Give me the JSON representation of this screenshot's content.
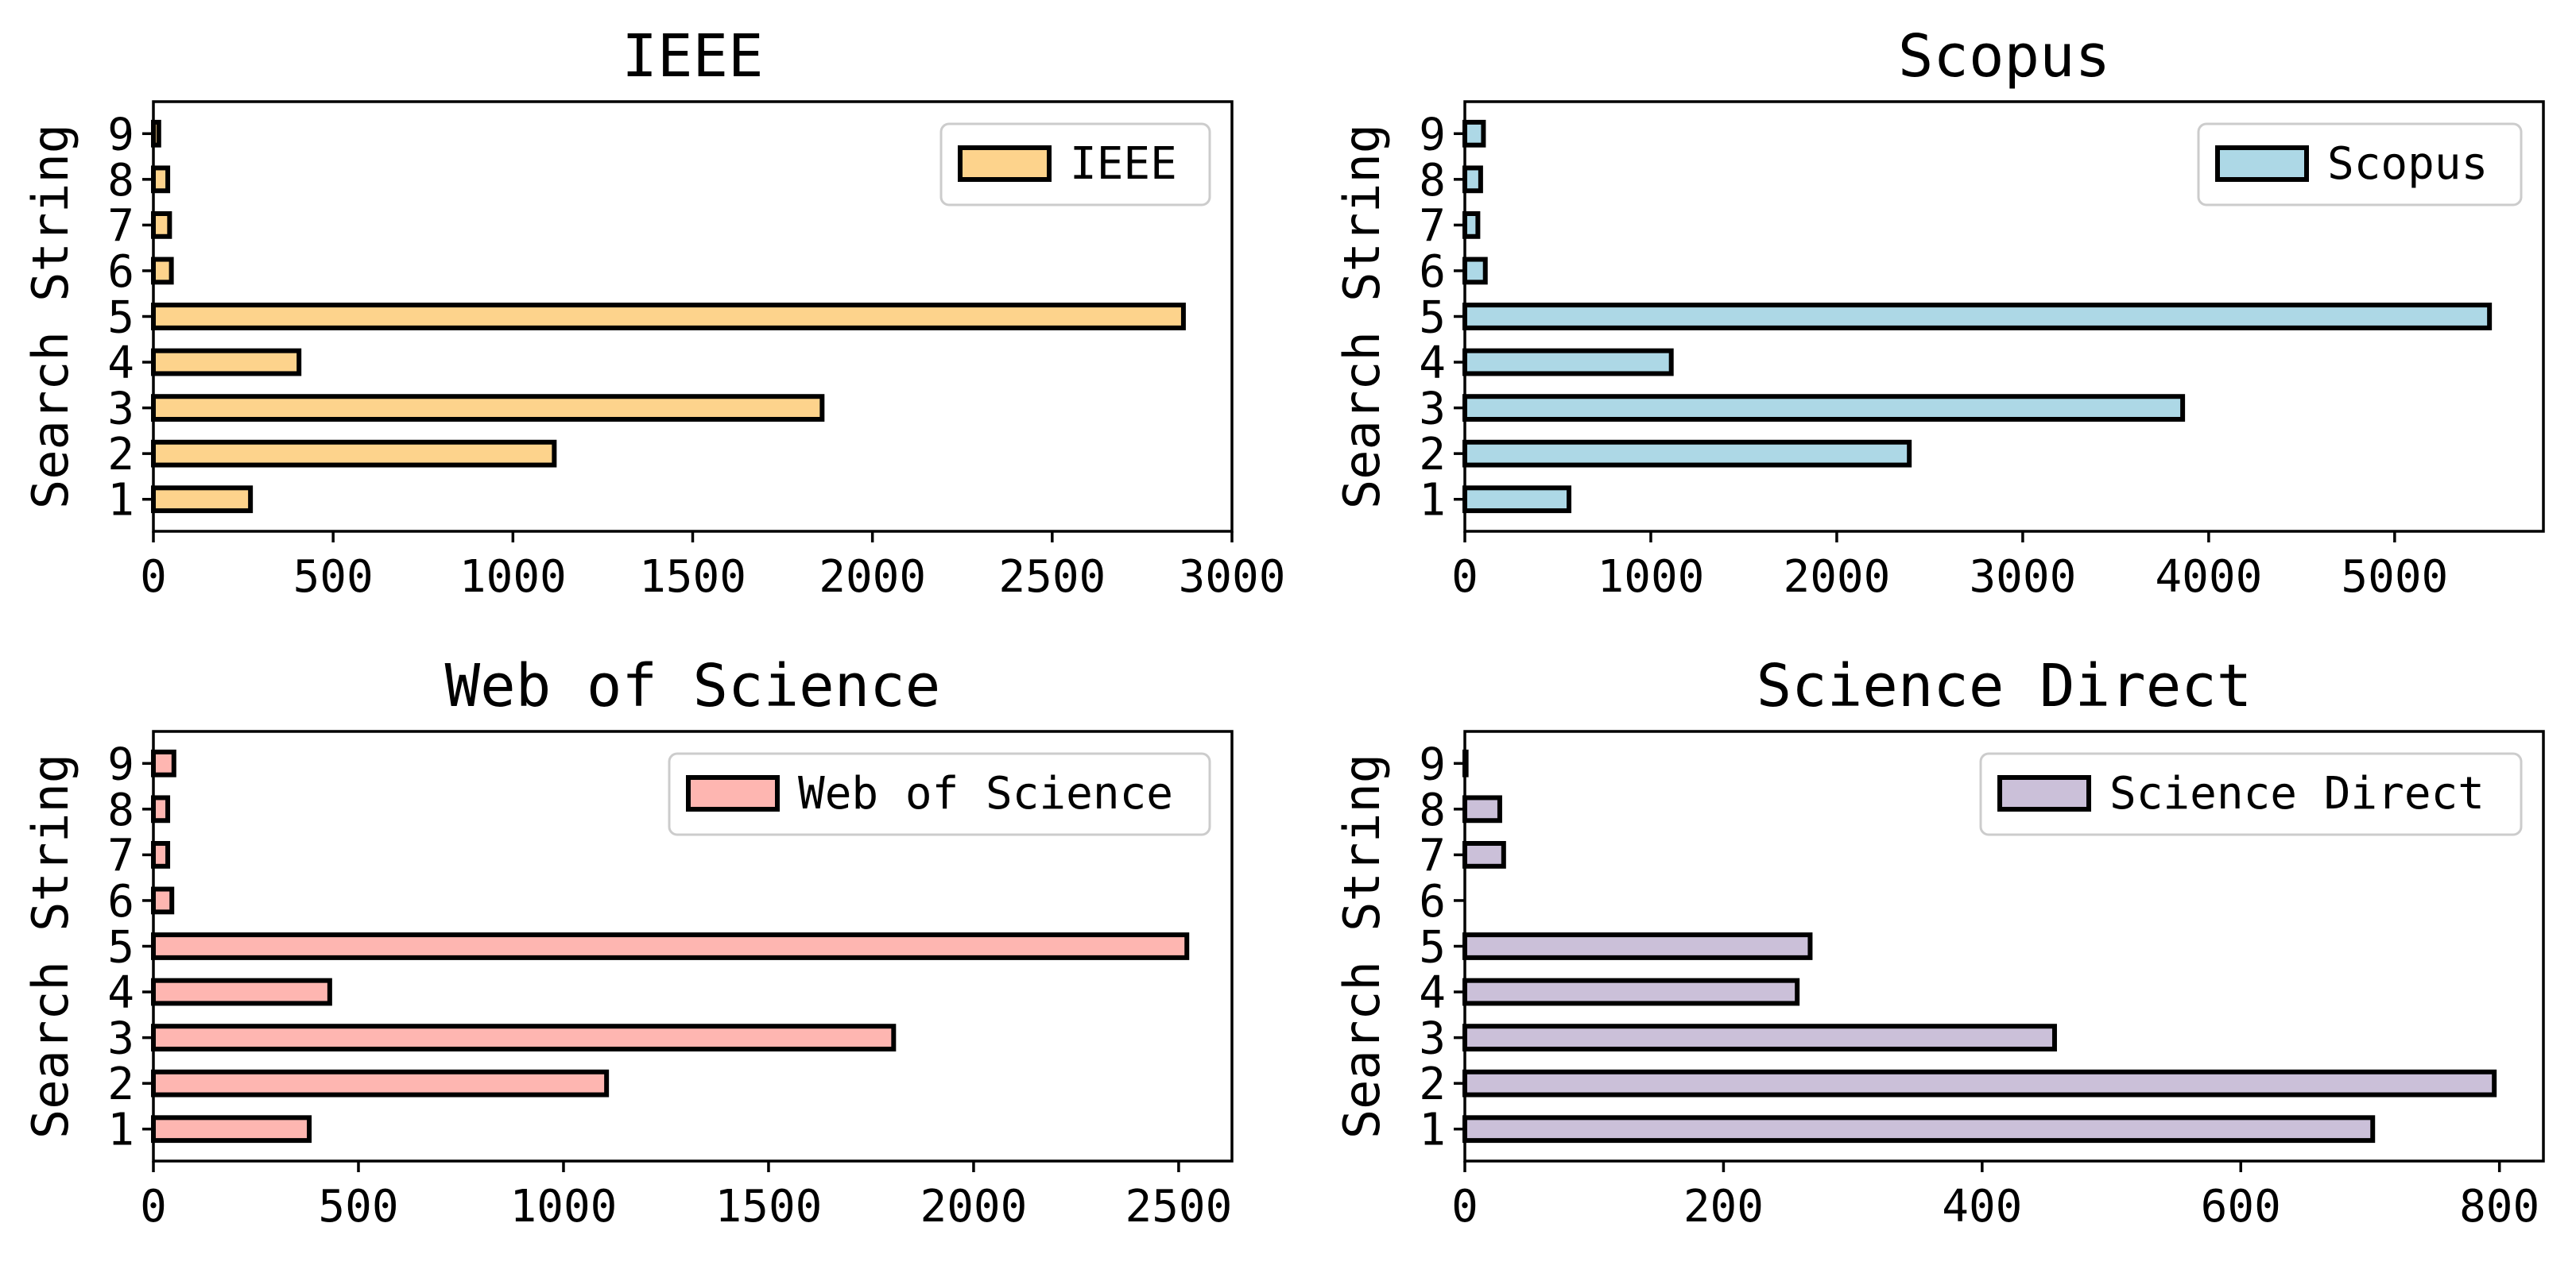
{
  "chart_data": [
    {
      "type": "bar",
      "orientation": "horizontal",
      "title": "IEEE",
      "ylabel": "Search String",
      "xlabel": "",
      "categories": [
        "1",
        "2",
        "3",
        "4",
        "5",
        "6",
        "7",
        "8",
        "9"
      ],
      "values": [
        270,
        1115,
        1860,
        405,
        2865,
        50,
        45,
        40,
        15
      ],
      "xlim": [
        0,
        3000
      ],
      "xticks": [
        "0",
        "500",
        "1000",
        "1500",
        "2000",
        "2500",
        "3000"
      ],
      "xtick_values": [
        0,
        500,
        1000,
        1500,
        2000,
        2500,
        3000
      ],
      "legend": "IEEE",
      "legend_position": "top-right",
      "color": "#FDD38C"
    },
    {
      "type": "bar",
      "orientation": "horizontal",
      "title": "Scopus",
      "ylabel": "Search String",
      "xlabel": "",
      "categories": [
        "1",
        "2",
        "3",
        "4",
        "5",
        "6",
        "7",
        "8",
        "9"
      ],
      "values": [
        560,
        2390,
        3860,
        1110,
        5510,
        110,
        70,
        85,
        100
      ],
      "xlim": [
        0,
        5800
      ],
      "xticks": [
        "0",
        "1000",
        "2000",
        "3000",
        "4000",
        "5000"
      ],
      "xtick_values": [
        0,
        1000,
        2000,
        3000,
        4000,
        5000
      ],
      "legend": "Scopus",
      "legend_position": "top-right",
      "color": "#ADD8E6"
    },
    {
      "type": "bar",
      "orientation": "horizontal",
      "title": "Web of Science",
      "ylabel": "Search String",
      "xlabel": "",
      "categories": [
        "1",
        "2",
        "3",
        "4",
        "5",
        "6",
        "7",
        "8",
        "9"
      ],
      "values": [
        380,
        1105,
        1805,
        430,
        2520,
        45,
        35,
        35,
        50
      ],
      "xlim": [
        0,
        2630
      ],
      "xticks": [
        "0",
        "500",
        "1000",
        "1500",
        "2000",
        "2500"
      ],
      "xtick_values": [
        0,
        500,
        1000,
        1500,
        2000,
        2500
      ],
      "legend": "Web of Science",
      "legend_position": "top-right",
      "color": "#FEB6B1"
    },
    {
      "type": "bar",
      "orientation": "horizontal",
      "title": "Science Direct",
      "ylabel": "Search String",
      "xlabel": "",
      "categories": [
        "1",
        "2",
        "3",
        "4",
        "5",
        "6",
        "7",
        "8",
        "9"
      ],
      "values": [
        702,
        796,
        456,
        257,
        267,
        0,
        30,
        27,
        1
      ],
      "xlim": [
        0,
        834
      ],
      "xticks": [
        "0",
        "200",
        "400",
        "600",
        "800"
      ],
      "xtick_values": [
        0,
        200,
        400,
        600,
        800
      ],
      "legend": "Science Direct",
      "legend_position": "top-right",
      "color": "#CBC0D9"
    }
  ]
}
